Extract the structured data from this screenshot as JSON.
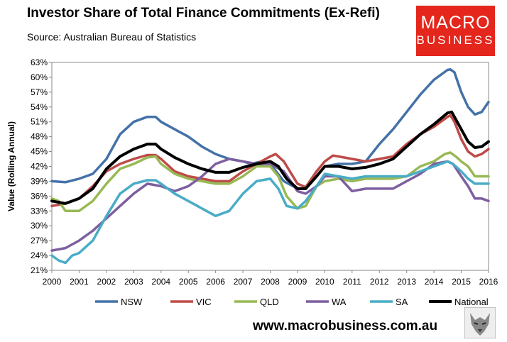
{
  "header": {
    "title": "Investor Share of Total Finance Commitments (Ex-Refi)",
    "subtitle": "Source: Australian Bureau of Statistics"
  },
  "logo": {
    "line1": "MACRO",
    "line2": "BUSINESS"
  },
  "footer": {
    "url": "www.macrobusiness.com.au"
  },
  "chart_data": {
    "type": "line",
    "title": "Investor Share of Total Finance Commitments (Ex-Refi)",
    "xlabel": "",
    "ylabel": "Value (Rolling Annual)",
    "xlim": [
      2000,
      2016
    ],
    "ylim": [
      21,
      63
    ],
    "yticks": [
      "21%",
      "24%",
      "27%",
      "30%",
      "33%",
      "36%",
      "39%",
      "42%",
      "45%",
      "48%",
      "51%",
      "54%",
      "57%",
      "60%",
      "63%"
    ],
    "xticks": [
      "2000",
      "2001",
      "2002",
      "2003",
      "2004",
      "2005",
      "2006",
      "2007",
      "2008",
      "2009",
      "2010",
      "2011",
      "2012",
      "2013",
      "2014",
      "2015",
      "2016"
    ],
    "grid": false,
    "legend": "bottom",
    "series": [
      {
        "name": "NSW",
        "color": "#4472a8",
        "width": 3.5,
        "points": [
          [
            2000,
            39
          ],
          [
            2000.5,
            38.8
          ],
          [
            2001,
            39.5
          ],
          [
            2001.5,
            40.5
          ],
          [
            2002,
            43.5
          ],
          [
            2002.5,
            48.5
          ],
          [
            2003,
            51
          ],
          [
            2003.5,
            52
          ],
          [
            2003.8,
            52
          ],
          [
            2004,
            51
          ],
          [
            2004.5,
            49.5
          ],
          [
            2005,
            48
          ],
          [
            2005.5,
            46
          ],
          [
            2006,
            44.5
          ],
          [
            2006.5,
            43.5
          ],
          [
            2007,
            43
          ],
          [
            2007.3,
            42.5
          ],
          [
            2007.7,
            43
          ],
          [
            2008,
            42.5
          ],
          [
            2008.5,
            39
          ],
          [
            2009,
            37.5
          ],
          [
            2009.3,
            37.5
          ],
          [
            2009.7,
            40
          ],
          [
            2010,
            42
          ],
          [
            2010.5,
            42.5
          ],
          [
            2011,
            42.5
          ],
          [
            2011.5,
            43
          ],
          [
            2012,
            46.5
          ],
          [
            2012.5,
            49.5
          ],
          [
            2013,
            53
          ],
          [
            2013.5,
            56.5
          ],
          [
            2014,
            59.5
          ],
          [
            2014.5,
            61.5
          ],
          [
            2014.6,
            61.6
          ],
          [
            2014.75,
            61
          ],
          [
            2015,
            57
          ],
          [
            2015.25,
            54
          ],
          [
            2015.5,
            52.5
          ],
          [
            2015.75,
            53
          ],
          [
            2016,
            55
          ]
        ]
      },
      {
        "name": "VIC",
        "color": "#be4b48",
        "width": 3.5,
        "points": [
          [
            2000,
            34
          ],
          [
            2000.5,
            34.5
          ],
          [
            2001,
            35.5
          ],
          [
            2001.5,
            38
          ],
          [
            2002,
            41
          ],
          [
            2002.5,
            42.5
          ],
          [
            2003,
            43.5
          ],
          [
            2003.5,
            44.3
          ],
          [
            2003.8,
            44.3
          ],
          [
            2004,
            43.5
          ],
          [
            2004.5,
            41
          ],
          [
            2005,
            40
          ],
          [
            2005.5,
            39.5
          ],
          [
            2006,
            39
          ],
          [
            2006.5,
            39
          ],
          [
            2007,
            41
          ],
          [
            2007.5,
            42.5
          ],
          [
            2008,
            44
          ],
          [
            2008.2,
            44.5
          ],
          [
            2008.5,
            43
          ],
          [
            2009,
            38.5
          ],
          [
            2009.3,
            37.8
          ],
          [
            2009.7,
            41
          ],
          [
            2010,
            43
          ],
          [
            2010.3,
            44.2
          ],
          [
            2010.5,
            44
          ],
          [
            2011,
            43.5
          ],
          [
            2011.5,
            43
          ],
          [
            2012,
            43.5
          ],
          [
            2012.5,
            44
          ],
          [
            2013,
            46.5
          ],
          [
            2013.5,
            48.5
          ],
          [
            2014,
            50
          ],
          [
            2014.5,
            52
          ],
          [
            2014.6,
            52.3
          ],
          [
            2014.75,
            51
          ],
          [
            2015,
            47.5
          ],
          [
            2015.25,
            45
          ],
          [
            2015.5,
            44
          ],
          [
            2015.75,
            44.5
          ],
          [
            2016,
            45.5
          ]
        ]
      },
      {
        "name": "QLD",
        "color": "#98b954",
        "width": 3.5,
        "points": [
          [
            2000,
            35.5
          ],
          [
            2000.25,
            35
          ],
          [
            2000.5,
            33
          ],
          [
            2000.75,
            33
          ],
          [
            2001,
            33
          ],
          [
            2001.5,
            35
          ],
          [
            2002,
            38.5
          ],
          [
            2002.5,
            41.5
          ],
          [
            2003,
            42.5
          ],
          [
            2003.5,
            43.8
          ],
          [
            2003.8,
            44
          ],
          [
            2004,
            42.5
          ],
          [
            2004.5,
            40.5
          ],
          [
            2005,
            39.5
          ],
          [
            2005.5,
            39
          ],
          [
            2006,
            38.5
          ],
          [
            2006.5,
            38.5
          ],
          [
            2007,
            40
          ],
          [
            2007.5,
            42
          ],
          [
            2008,
            42
          ],
          [
            2008.3,
            40
          ],
          [
            2008.6,
            36
          ],
          [
            2009,
            33.5
          ],
          [
            2009.3,
            34
          ],
          [
            2009.7,
            38
          ],
          [
            2010,
            39
          ],
          [
            2010.5,
            39.5
          ],
          [
            2011,
            39
          ],
          [
            2011.5,
            39.5
          ],
          [
            2012,
            39.5
          ],
          [
            2012.5,
            39.5
          ],
          [
            2013,
            40
          ],
          [
            2013.5,
            42
          ],
          [
            2014,
            43
          ],
          [
            2014.4,
            44.5
          ],
          [
            2014.6,
            44.8
          ],
          [
            2014.8,
            44
          ],
          [
            2015,
            43
          ],
          [
            2015.25,
            42
          ],
          [
            2015.5,
            40
          ],
          [
            2016,
            40
          ]
        ]
      },
      {
        "name": "WA",
        "color": "#7d5fa0",
        "width": 3.5,
        "points": [
          [
            2000,
            25
          ],
          [
            2000.5,
            25.5
          ],
          [
            2001,
            27
          ],
          [
            2001.5,
            29
          ],
          [
            2002,
            31.5
          ],
          [
            2002.5,
            34
          ],
          [
            2003,
            36.5
          ],
          [
            2003.5,
            38.5
          ],
          [
            2004,
            38
          ],
          [
            2004.5,
            37
          ],
          [
            2005,
            38
          ],
          [
            2005.5,
            40
          ],
          [
            2006,
            42.5
          ],
          [
            2006.5,
            43.5
          ],
          [
            2007,
            43
          ],
          [
            2007.5,
            42.5
          ],
          [
            2008,
            42.5
          ],
          [
            2008.5,
            41
          ],
          [
            2009,
            37
          ],
          [
            2009.3,
            36.5
          ],
          [
            2009.7,
            38
          ],
          [
            2010,
            40
          ],
          [
            2010.5,
            40
          ],
          [
            2011,
            37
          ],
          [
            2011.5,
            37.5
          ],
          [
            2012,
            37.5
          ],
          [
            2012.5,
            37.5
          ],
          [
            2013,
            39
          ],
          [
            2013.5,
            40.5
          ],
          [
            2014,
            42.5
          ],
          [
            2014.5,
            43
          ],
          [
            2014.7,
            42.5
          ],
          [
            2015,
            40
          ],
          [
            2015.25,
            38
          ],
          [
            2015.5,
            35.5
          ],
          [
            2015.75,
            35.5
          ],
          [
            2016,
            35
          ]
        ]
      },
      {
        "name": "SA",
        "color": "#4aacc6",
        "width": 3.5,
        "points": [
          [
            2000,
            24
          ],
          [
            2000.25,
            23
          ],
          [
            2000.5,
            22.5
          ],
          [
            2000.75,
            24
          ],
          [
            2001,
            24.5
          ],
          [
            2001.5,
            27
          ],
          [
            2002,
            32
          ],
          [
            2002.5,
            36.5
          ],
          [
            2003,
            38.5
          ],
          [
            2003.5,
            39.2
          ],
          [
            2003.8,
            39.2
          ],
          [
            2004,
            38.5
          ],
          [
            2004.5,
            36.5
          ],
          [
            2005,
            35
          ],
          [
            2005.5,
            33.5
          ],
          [
            2006,
            32
          ],
          [
            2006.5,
            33
          ],
          [
            2007,
            36.5
          ],
          [
            2007.5,
            39
          ],
          [
            2008,
            39.5
          ],
          [
            2008.3,
            37.5
          ],
          [
            2008.6,
            34
          ],
          [
            2009,
            33.5
          ],
          [
            2009.3,
            35
          ],
          [
            2009.7,
            38
          ],
          [
            2010,
            40.5
          ],
          [
            2010.5,
            40
          ],
          [
            2011,
            39.5
          ],
          [
            2011.5,
            40
          ],
          [
            2012,
            40
          ],
          [
            2012.5,
            40
          ],
          [
            2013,
            40
          ],
          [
            2013.5,
            41
          ],
          [
            2014,
            42
          ],
          [
            2014.5,
            43
          ],
          [
            2014.7,
            42.5
          ],
          [
            2015,
            41
          ],
          [
            2015.25,
            39.5
          ],
          [
            2015.5,
            38.5
          ],
          [
            2016,
            38.5
          ]
        ]
      },
      {
        "name": "National",
        "color": "#000000",
        "width": 4,
        "points": [
          [
            2000,
            35
          ],
          [
            2000.5,
            34.5
          ],
          [
            2001,
            35.5
          ],
          [
            2001.5,
            37.5
          ],
          [
            2002,
            41.5
          ],
          [
            2002.5,
            44
          ],
          [
            2003,
            45.5
          ],
          [
            2003.5,
            46.5
          ],
          [
            2003.8,
            46.5
          ],
          [
            2004,
            45.5
          ],
          [
            2004.5,
            43.8
          ],
          [
            2005,
            42.5
          ],
          [
            2005.5,
            41.5
          ],
          [
            2006,
            40.8
          ],
          [
            2006.5,
            40.8
          ],
          [
            2007,
            41.8
          ],
          [
            2007.5,
            42.5
          ],
          [
            2008,
            43
          ],
          [
            2008.3,
            42
          ],
          [
            2008.6,
            39.5
          ],
          [
            2009,
            37.5
          ],
          [
            2009.3,
            37.5
          ],
          [
            2009.7,
            40
          ],
          [
            2010,
            42
          ],
          [
            2010.5,
            42
          ],
          [
            2011,
            41.5
          ],
          [
            2011.5,
            41.8
          ],
          [
            2012,
            42.5
          ],
          [
            2012.5,
            43.5
          ],
          [
            2013,
            46
          ],
          [
            2013.5,
            48.5
          ],
          [
            2014,
            50.5
          ],
          [
            2014.5,
            52.8
          ],
          [
            2014.65,
            53
          ],
          [
            2014.8,
            51.5
          ],
          [
            2015,
            49.5
          ],
          [
            2015.25,
            47
          ],
          [
            2015.5,
            45.8
          ],
          [
            2015.75,
            46
          ],
          [
            2016,
            47
          ]
        ]
      }
    ]
  }
}
